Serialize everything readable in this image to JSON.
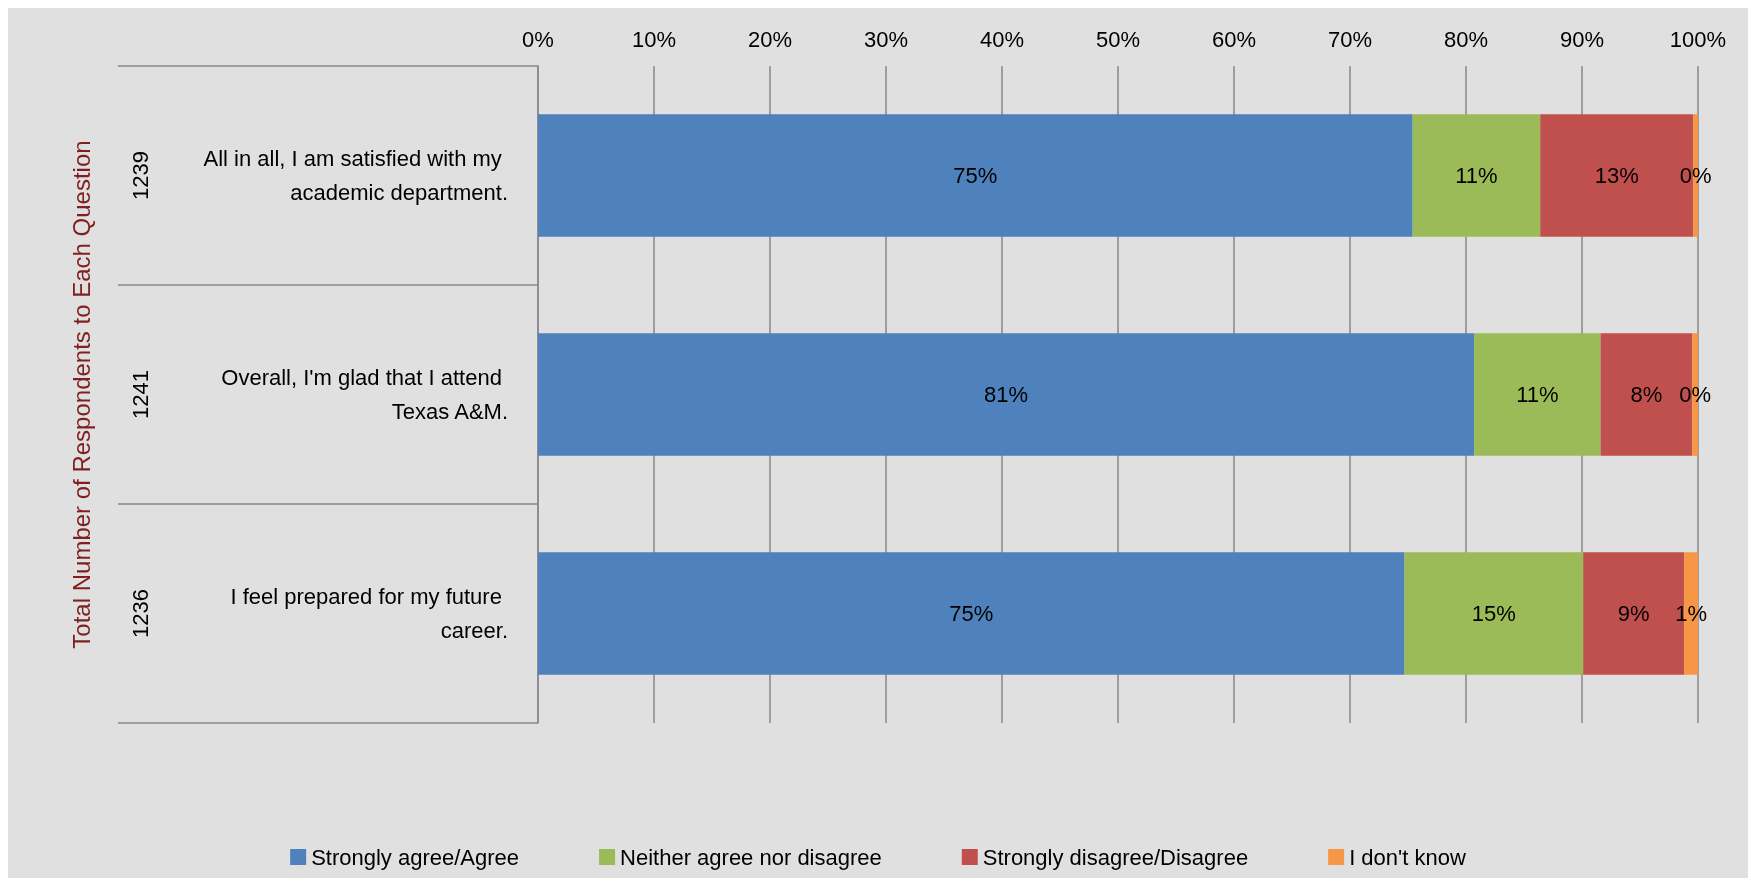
{
  "chart_data": {
    "type": "bar",
    "orientation": "horizontal",
    "stacked": true,
    "ylabel": "Total Number of Respondents to Each Question",
    "categories": [
      "All in all, I am satisfied with my academic department.",
      "Overall, I'm glad that I attend Texas A&M.",
      "I feel prepared for my future career."
    ],
    "annotations": [
      "1239",
      "1241",
      "1236"
    ],
    "series": [
      {
        "name": "Strongly agree/Agree",
        "color": "#4f81bd",
        "values": [
          75.4,
          80.7,
          74.7
        ],
        "value_labels": [
          "75%",
          "81%",
          "75%"
        ]
      },
      {
        "name": "Neither agree nor disagree",
        "color": "#9bbb59",
        "values": [
          11.0,
          10.9,
          15.4
        ],
        "value_labels": [
          "11%",
          "11%",
          "15%"
        ]
      },
      {
        "name": "Strongly disagree/Disagree",
        "color": "#c0504d",
        "values": [
          13.2,
          7.9,
          8.7
        ],
        "value_labels": [
          "13%",
          "8%",
          "9%"
        ]
      },
      {
        "name": "I don't know",
        "color": "#f79646",
        "values": [
          0.4,
          0.5,
          1.2
        ],
        "value_labels": [
          "0%",
          "0%",
          "1%"
        ]
      }
    ],
    "xlim": [
      0,
      100
    ],
    "xticks": [
      {
        "value": 0,
        "label": "0%"
      },
      {
        "value": 10,
        "label": "10%"
      },
      {
        "value": 20,
        "label": "20%"
      },
      {
        "value": 30,
        "label": "30%"
      },
      {
        "value": 40,
        "label": "40%"
      },
      {
        "value": 50,
        "label": "50%"
      },
      {
        "value": 60,
        "label": "60%"
      },
      {
        "value": 70,
        "label": "70%"
      },
      {
        "value": 80,
        "label": "80%"
      },
      {
        "value": 90,
        "label": "90%"
      },
      {
        "value": 100,
        "label": "100%"
      }
    ],
    "grid": "x",
    "legend": "bottom"
  }
}
